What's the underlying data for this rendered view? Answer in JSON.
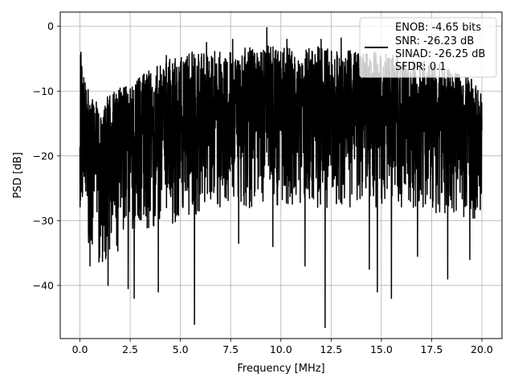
{
  "chart_data": {
    "type": "line",
    "title": "",
    "xlabel": "Frequency [MHz]",
    "ylabel": "PSD [dB]",
    "xlim": [
      -0.98,
      21.0
    ],
    "ylim": [
      -48.2,
      2.2
    ],
    "xticks": [
      0.0,
      2.5,
      5.0,
      7.5,
      10.0,
      12.5,
      15.0,
      17.5,
      20.0
    ],
    "xtick_labels": [
      "0.0",
      "2.5",
      "5.0",
      "7.5",
      "10.0",
      "12.5",
      "15.0",
      "17.5",
      "20.0"
    ],
    "yticks": [
      0,
      -10,
      -20,
      -30,
      -40
    ],
    "ytick_labels": [
      "0",
      "−10",
      "−20",
      "−30",
      "−40"
    ],
    "grid": true,
    "legend_position": "top-right",
    "series": [
      {
        "color": "#000000",
        "envelope_x": [
          0.0,
          0.5,
          1.0,
          1.5,
          2.0,
          2.5,
          3.0,
          3.5,
          4.0,
          4.5,
          5.0,
          5.5,
          6.0,
          6.5,
          7.0,
          7.5,
          8.0,
          8.5,
          9.0,
          9.5,
          10.0,
          10.5,
          11.0,
          11.5,
          12.0,
          12.5,
          13.0,
          13.5,
          14.0,
          14.5,
          15.0,
          15.5,
          16.0,
          16.5,
          17.0,
          17.5,
          18.0,
          18.5,
          19.0,
          19.5,
          20.0
        ],
        "envelope_max": [
          -4.0,
          -11.0,
          -12.0,
          -10.5,
          -9.5,
          -8.5,
          -7.5,
          -6.5,
          -6.0,
          -5.0,
          -4.5,
          -4.0,
          -3.5,
          -4.0,
          -3.5,
          -3.0,
          -3.5,
          -3.0,
          -4.0,
          -2.5,
          -3.0,
          -3.5,
          -4.0,
          -3.0,
          -3.0,
          -3.5,
          -4.0,
          -3.5,
          -4.0,
          -3.5,
          -4.0,
          -4.0,
          -5.0,
          -5.0,
          -5.5,
          -5.0,
          -6.0,
          -7.0,
          -7.5,
          -8.0,
          -10.0
        ],
        "envelope_mid": [
          -17.0,
          -18.0,
          -18.0,
          -17.5,
          -17.0,
          -16.5,
          -16.5,
          -16.0,
          -15.5,
          -15.0,
          -15.0,
          -14.5,
          -14.5,
          -14.0,
          -14.0,
          -14.0,
          -14.0,
          -14.0,
          -14.0,
          -14.0,
          -14.0,
          -14.0,
          -14.0,
          -14.0,
          -14.0,
          -14.0,
          -14.0,
          -14.0,
          -14.0,
          -14.0,
          -14.0,
          -14.0,
          -14.5,
          -14.5,
          -14.5,
          -14.5,
          -15.0,
          -15.0,
          -15.5,
          -15.5,
          -16.0
        ],
        "envelope_min": [
          -28.0,
          -35.0,
          -37.0,
          -36.0,
          -35.0,
          -34.0,
          -32.0,
          -31.0,
          -31.0,
          -30.5,
          -30.0,
          -29.5,
          -29.0,
          -29.0,
          -28.5,
          -28.5,
          -28.0,
          -28.0,
          -28.0,
          -28.0,
          -28.0,
          -28.0,
          -28.0,
          -28.0,
          -28.0,
          -28.0,
          -28.0,
          -28.0,
          -28.0,
          -28.0,
          -28.0,
          -28.0,
          -28.0,
          -28.0,
          -28.5,
          -29.0,
          -29.0,
          -29.5,
          -29.5,
          -30.0,
          -30.0
        ],
        "dips": [
          {
            "x": 0.5,
            "y": -37.0
          },
          {
            "x": 1.4,
            "y": -40.0
          },
          {
            "x": 2.4,
            "y": -40.5
          },
          {
            "x": 2.7,
            "y": -42.0
          },
          {
            "x": 3.9,
            "y": -41.0
          },
          {
            "x": 5.7,
            "y": -46.0
          },
          {
            "x": 7.9,
            "y": -33.5
          },
          {
            "x": 9.6,
            "y": -34.0
          },
          {
            "x": 11.2,
            "y": -37.0
          },
          {
            "x": 12.2,
            "y": -46.5
          },
          {
            "x": 14.4,
            "y": -37.5
          },
          {
            "x": 14.8,
            "y": -41.0
          },
          {
            "x": 15.5,
            "y": -42.0
          },
          {
            "x": 16.8,
            "y": -35.5
          },
          {
            "x": 18.3,
            "y": -39.0
          },
          {
            "x": 19.4,
            "y": -36.0
          }
        ],
        "peaks": [
          {
            "x": 0.05,
            "y": -4.0
          },
          {
            "x": 4.3,
            "y": -4.5
          },
          {
            "x": 6.3,
            "y": -2.5
          },
          {
            "x": 7.6,
            "y": -2.0
          },
          {
            "x": 9.3,
            "y": -0.2
          },
          {
            "x": 10.3,
            "y": -2.0
          },
          {
            "x": 12.0,
            "y": -2.0
          },
          {
            "x": 13.0,
            "y": -1.8
          }
        ]
      }
    ],
    "legend": {
      "lines": [
        "ENOB: -4.65 bits",
        "SNR: -26.23 dB",
        "SINAD: -26.25 dB",
        "SFDR: 0.1"
      ],
      "color": "#000000"
    }
  }
}
